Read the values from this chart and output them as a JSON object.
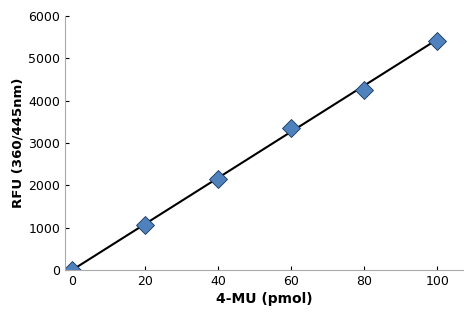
{
  "x": [
    0,
    20,
    40,
    60,
    80,
    100
  ],
  "y": [
    0,
    1050,
    2150,
    3350,
    4250,
    5400
  ],
  "yerr": [
    20,
    80,
    120,
    110,
    130,
    120
  ],
  "fit_x": [
    0,
    100
  ],
  "fit_y": [
    0,
    5450
  ],
  "xlabel": "4-MU (pmol)",
  "ylabel": "RFU (360/445nm)",
  "xlim": [
    -2,
    107
  ],
  "ylim": [
    0,
    6000
  ],
  "xticks": [
    0,
    20,
    40,
    60,
    80,
    100
  ],
  "yticks": [
    0,
    1000,
    2000,
    3000,
    4000,
    5000,
    6000
  ],
  "marker_color": "#4F81BD",
  "marker_edge_color": "#17375E",
  "line_color": "#000000",
  "marker_size": 9,
  "line_width": 1.5,
  "ecolor": "#1F1F1F",
  "capsize": 2.5,
  "background_color": "#ffffff",
  "spine_color": "#AAAAAA"
}
